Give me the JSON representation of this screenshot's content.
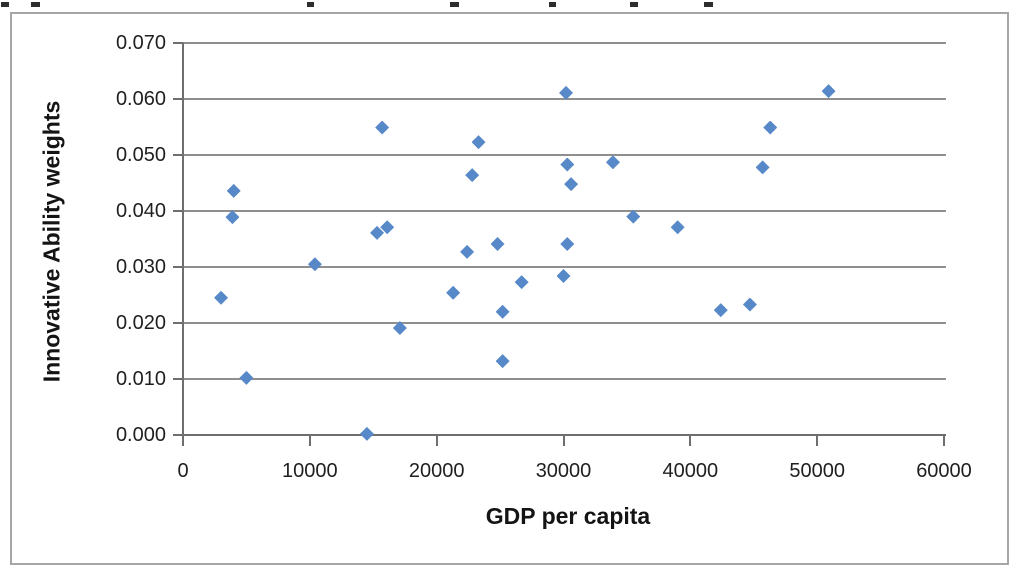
{
  "chart_data": {
    "type": "scatter",
    "title": "",
    "xlabel": "GDP per capita",
    "ylabel": "Innovative Ability weights",
    "xlim": [
      0,
      60000
    ],
    "ylim": [
      0,
      0.07
    ],
    "x_ticks": [
      "0",
      "10000",
      "20000",
      "30000",
      "40000",
      "50000",
      "60000"
    ],
    "y_ticks": [
      "0.000",
      "0.010",
      "0.020",
      "0.030",
      "0.040",
      "0.050",
      "0.060",
      "0.070"
    ],
    "grid": true,
    "legend": false,
    "marker": "diamond",
    "points": [
      {
        "x": 3000,
        "y": 0.0245
      },
      {
        "x": 3900,
        "y": 0.0389
      },
      {
        "x": 4000,
        "y": 0.0436
      },
      {
        "x": 5000,
        "y": 0.0102
      },
      {
        "x": 10400,
        "y": 0.0305
      },
      {
        "x": 14500,
        "y": 0.0002
      },
      {
        "x": 15300,
        "y": 0.0361
      },
      {
        "x": 15700,
        "y": 0.0549
      },
      {
        "x": 16100,
        "y": 0.0371
      },
      {
        "x": 17100,
        "y": 0.0191
      },
      {
        "x": 21300,
        "y": 0.0254
      },
      {
        "x": 22400,
        "y": 0.0327
      },
      {
        "x": 22800,
        "y": 0.0464
      },
      {
        "x": 23300,
        "y": 0.0523
      },
      {
        "x": 24800,
        "y": 0.0341
      },
      {
        "x": 25200,
        "y": 0.022
      },
      {
        "x": 25200,
        "y": 0.0132
      },
      {
        "x": 26700,
        "y": 0.0273
      },
      {
        "x": 30000,
        "y": 0.0284
      },
      {
        "x": 30200,
        "y": 0.0611
      },
      {
        "x": 30300,
        "y": 0.0483
      },
      {
        "x": 30300,
        "y": 0.0341
      },
      {
        "x": 30600,
        "y": 0.0448
      },
      {
        "x": 33900,
        "y": 0.0487
      },
      {
        "x": 35500,
        "y": 0.039
      },
      {
        "x": 39000,
        "y": 0.0371
      },
      {
        "x": 42400,
        "y": 0.0223
      },
      {
        "x": 44700,
        "y": 0.0233
      },
      {
        "x": 45700,
        "y": 0.0478
      },
      {
        "x": 46300,
        "y": 0.0549
      },
      {
        "x": 50900,
        "y": 0.0614
      }
    ]
  },
  "colors": {
    "marker": "#5789C9",
    "gridline": "#8F8F8F",
    "axis": "#6E6E6E",
    "frame_border": "#A6A6A6",
    "tick_text": "#1F1F1F"
  },
  "artifacts": {
    "cropped_text_marks": [
      {
        "x": 1,
        "w": 8
      },
      {
        "x": 31,
        "w": 9
      },
      {
        "x": 307,
        "w": 7
      },
      {
        "x": 450,
        "w": 9
      },
      {
        "x": 549,
        "w": 7
      },
      {
        "x": 630,
        "w": 8
      },
      {
        "x": 704,
        "w": 9
      }
    ]
  }
}
